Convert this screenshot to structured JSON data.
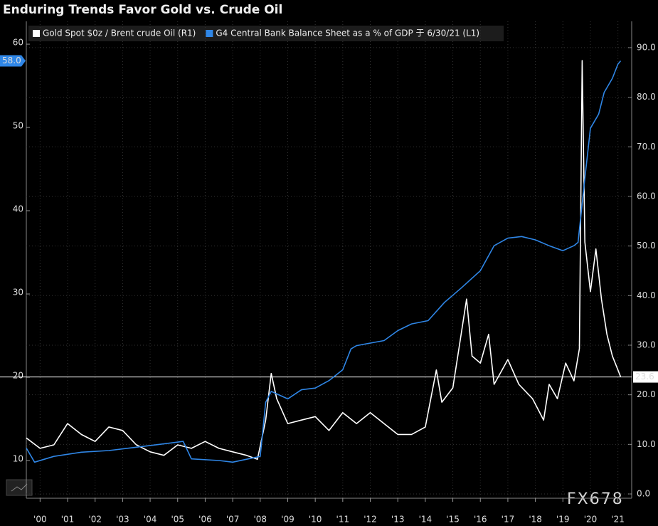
{
  "chart_data": {
    "type": "line",
    "title": "Enduring Trends Favor Gold vs. Crude Oil",
    "watermark": "FX678",
    "xlim": [
      2000,
      2022
    ],
    "xticks": [
      {
        "value": 2000.5,
        "label": "'00"
      },
      {
        "value": 2001.5,
        "label": "'01"
      },
      {
        "value": 2002.5,
        "label": "'02"
      },
      {
        "value": 2003.5,
        "label": "'03"
      },
      {
        "value": 2004.5,
        "label": "'04"
      },
      {
        "value": 2005.5,
        "label": "'05"
      },
      {
        "value": 2006.5,
        "label": "'06"
      },
      {
        "value": 2007.5,
        "label": "'07"
      },
      {
        "value": 2008.5,
        "label": "'08"
      },
      {
        "value": 2009.5,
        "label": "'09"
      },
      {
        "value": 2010.5,
        "label": "'10"
      },
      {
        "value": 2011.5,
        "label": "'11"
      },
      {
        "value": 2012.5,
        "label": "'12"
      },
      {
        "value": 2013.5,
        "label": "'13"
      },
      {
        "value": 2014.5,
        "label": "'14"
      },
      {
        "value": 2015.5,
        "label": "'15"
      },
      {
        "value": 2016.5,
        "label": "'16"
      },
      {
        "value": 2017.5,
        "label": "'17"
      },
      {
        "value": 2018.5,
        "label": "'18"
      },
      {
        "value": 2019.5,
        "label": "'19"
      },
      {
        "value": 2020.5,
        "label": "'20"
      },
      {
        "value": 2021.5,
        "label": "'21"
      }
    ],
    "ylim": [
      5.47,
      62.74
    ],
    "yticks": [
      10,
      20,
      30,
      40,
      50,
      60
    ],
    "y2lim": [
      -0.86,
      95.3
    ],
    "y2ticks": [
      {
        "value": 0,
        "label": "0.0"
      },
      {
        "value": 10,
        "label": "10.0"
      },
      {
        "value": 20,
        "label": "20.0"
      },
      {
        "value": 30,
        "label": "30.0"
      },
      {
        "value": 40,
        "label": "40.0"
      },
      {
        "value": 50,
        "label": "50.0"
      },
      {
        "value": 60,
        "label": "60.0"
      },
      {
        "value": 70,
        "label": "70.0"
      },
      {
        "value": 80,
        "label": "80.0"
      },
      {
        "value": 90,
        "label": "90.0"
      }
    ],
    "grid": true,
    "series": [
      {
        "name": "Gold Spot $0z / Brent crude Oil (R1)",
        "color": "#ffffff",
        "axis": "y2",
        "last_value_label": "23.6",
        "x": [
          2000,
          2000.5,
          2001,
          2001.5,
          2002,
          2002.5,
          2003,
          2003.5,
          2004,
          2004.5,
          2005,
          2005.5,
          2006,
          2006.5,
          2007,
          2007.5,
          2008,
          2008.4,
          2008.7,
          2008.9,
          2009.1,
          2009.5,
          2010,
          2010.5,
          2011,
          2011.5,
          2012,
          2012.5,
          2013,
          2013.5,
          2014,
          2014.5,
          2014.9,
          2015.1,
          2015.5,
          2016,
          2016.2,
          2016.5,
          2016.8,
          2017,
          2017.5,
          2017.9,
          2018.4,
          2018.8,
          2019,
          2019.3,
          2019.6,
          2019.9,
          2020.1,
          2020.2,
          2020.3,
          2020.5,
          2020.7,
          2020.9,
          2021.1,
          2021.3,
          2021.5,
          2021.6
        ],
        "values": [
          11.3,
          9.2,
          9.9,
          14.2,
          12,
          10.6,
          13.5,
          12.8,
          9.9,
          8.5,
          7.8,
          9.9,
          9.2,
          10.6,
          9.2,
          8.5,
          7.8,
          7,
          14.9,
          24.3,
          19.2,
          14.2,
          14.9,
          15.6,
          12.8,
          16.4,
          14.2,
          16.4,
          14.2,
          12,
          12,
          13.5,
          25,
          18.5,
          21.4,
          39.3,
          27.8,
          26.4,
          32.2,
          22.1,
          27.1,
          22.1,
          19.2,
          14.9,
          22.1,
          19.2,
          26.4,
          22.8,
          29.3,
          87.4,
          50.8,
          40.8,
          49.4,
          39.3,
          32.2,
          27.8,
          25,
          23.6
        ]
      },
      {
        "name": "G4 Central Bank Balance Sheet as a % of GDP 于 6/30/21 (L1)",
        "color": "#2f86e6",
        "axis": "y",
        "last_value_label": "58.0",
        "x": [
          2000,
          2000.3,
          2001,
          2002,
          2003,
          2004,
          2005,
          2005.7,
          2006,
          2007,
          2007.5,
          2008.5,
          2008.7,
          2008.9,
          2009.5,
          2010,
          2010.5,
          2011,
          2011.5,
          2011.8,
          2012,
          2013,
          2013.5,
          2014,
          2014.6,
          2015.2,
          2015.8,
          2016.5,
          2017,
          2017.5,
          2018,
          2018.5,
          2019,
          2019.5,
          2019.9,
          2020.05,
          2020.3,
          2020.5,
          2020.8,
          2021,
          2021.3,
          2021.5,
          2021.6
        ],
        "values": [
          11.5,
          9.8,
          10.5,
          11,
          11.2,
          11.6,
          12,
          12.3,
          10.2,
          10,
          9.8,
          10.5,
          17,
          18.3,
          17.4,
          18.5,
          18.7,
          19.6,
          20.9,
          23.4,
          23.8,
          24.4,
          25.6,
          26.4,
          26.8,
          29,
          30.7,
          32.8,
          35.8,
          36.7,
          36.9,
          36.5,
          35.8,
          35.2,
          35.8,
          36.2,
          43.9,
          49.9,
          51.6,
          54.2,
          55.9,
          57.6,
          58
        ]
      }
    ]
  }
}
